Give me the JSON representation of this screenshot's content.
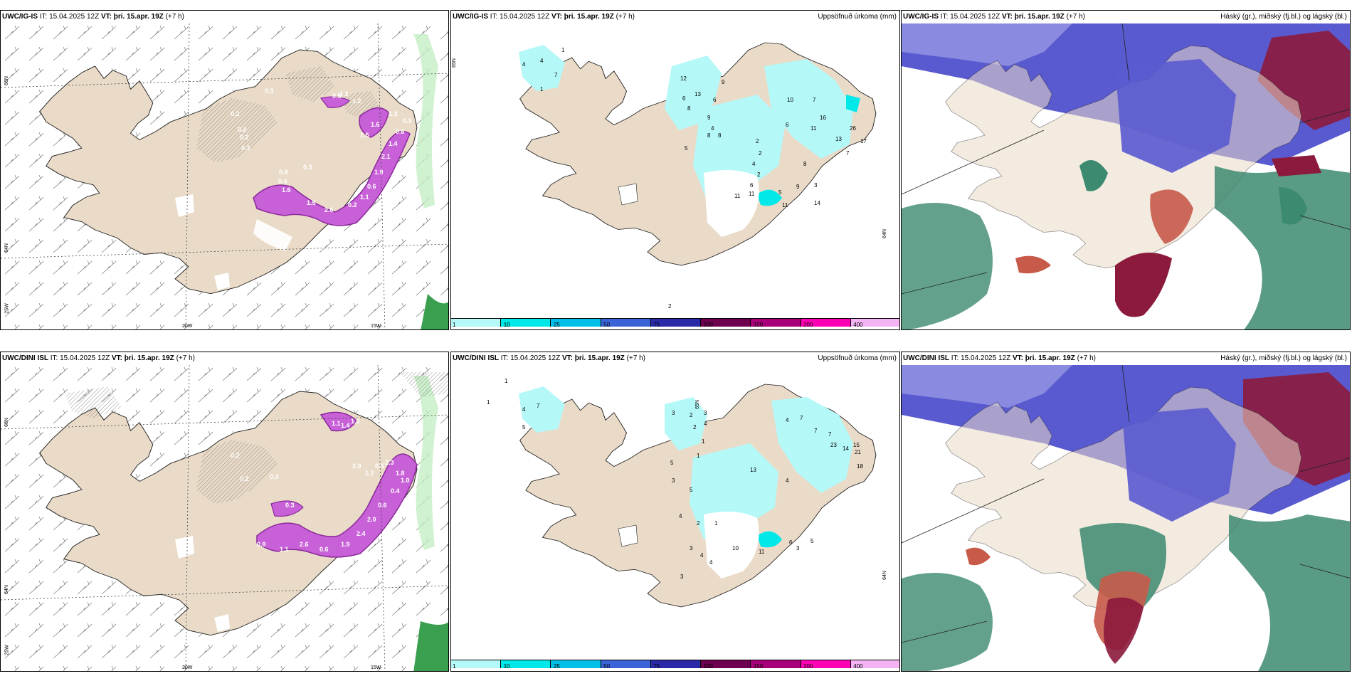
{
  "rows": [
    {
      "model_label": "UWC/IG-IS",
      "it_text": "IT: 15.04.2025 12Z",
      "vt_label": "VT:",
      "vt_text": "þri. 15.apr. 19Z",
      "lead_text": "(+7 h)",
      "wind_values": [
        "0.2",
        "0.2",
        "0.3",
        "0.3",
        "0.5",
        "1.3",
        "1.2",
        "0.2",
        "0.8",
        "0.3",
        "1.6",
        "1.5",
        "2.6",
        "0.2",
        "1.1",
        "0.6",
        "1.9",
        "2.1",
        "1.4",
        "0.6",
        "0.3",
        "1.3",
        "1.6",
        "1.5",
        "0.4"
      ],
      "precip_values": [
        "4",
        "4",
        "7",
        "1",
        "1",
        "12",
        "6",
        "13",
        "8",
        "5",
        "6",
        "9",
        "4",
        "8",
        "8",
        "9",
        "10",
        "7",
        "16",
        "6",
        "11",
        "13",
        "2",
        "7",
        "2",
        "4",
        "2",
        "6",
        "8",
        "5",
        "9",
        "3",
        "11",
        "11",
        "11",
        "14",
        "26",
        "17",
        "2"
      ]
    },
    {
      "model_label": "UWC/DINI ISL",
      "it_text": "IT: 15.04.2025 12Z",
      "vt_label": "VT:",
      "vt_text": "þri. 15.apr. 19Z",
      "lead_text": "(+7 h)",
      "wind_values": [
        "0.2",
        "0.2",
        "0.3",
        "1.1",
        "1.4",
        "1.6",
        "2.0",
        "0.3",
        "1.2",
        "0.5",
        "2.3",
        "1.8",
        "0.8",
        "1.1",
        "2.6",
        "0.6",
        "1.9",
        "2.4",
        "2.0",
        "0.6",
        "0.4",
        "1.0",
        "0.9"
      ],
      "precip_values": [
        "1",
        "1",
        "4",
        "7",
        "5",
        "3",
        "2",
        "2",
        "3",
        "4",
        "1",
        "1",
        "4",
        "7",
        "7",
        "7",
        "23",
        "15",
        "21",
        "18",
        "14",
        "13",
        "4",
        "5",
        "3",
        "5",
        "4",
        "2",
        "1",
        "3",
        "4",
        "4",
        "3",
        "10",
        "11",
        "6",
        "3",
        "5"
      ]
    }
  ],
  "precip_title": "Uppsöfnuð úrkoma (mm)",
  "cloud_title": "Háský (gr.), miðský (fj.bl.) og lágský (bl.)",
  "axis_labels": {
    "lat66": "66N",
    "lat64": "64N",
    "lon20": "20W",
    "lon15": "15W",
    "lon25": "25W"
  },
  "legend": {
    "colors": [
      "#b4f8f8",
      "#00e8e8",
      "#00bfe8",
      "#3a63d8",
      "#2a2aa8",
      "#6e0050",
      "#a8007a",
      "#ff00b4",
      "#f4b4f4"
    ],
    "ticks": [
      "1",
      "10",
      "25",
      "50",
      "75",
      "100",
      "150",
      "200",
      "400"
    ]
  },
  "colors": {
    "land": "#eadbc8",
    "precip_light": "#b4f8f8",
    "snow_purple": "#c860d8",
    "cloud_blue": "#5a5ad0",
    "cloud_red": "#8c1a3c",
    "cloud_green": "#3c8a70"
  }
}
